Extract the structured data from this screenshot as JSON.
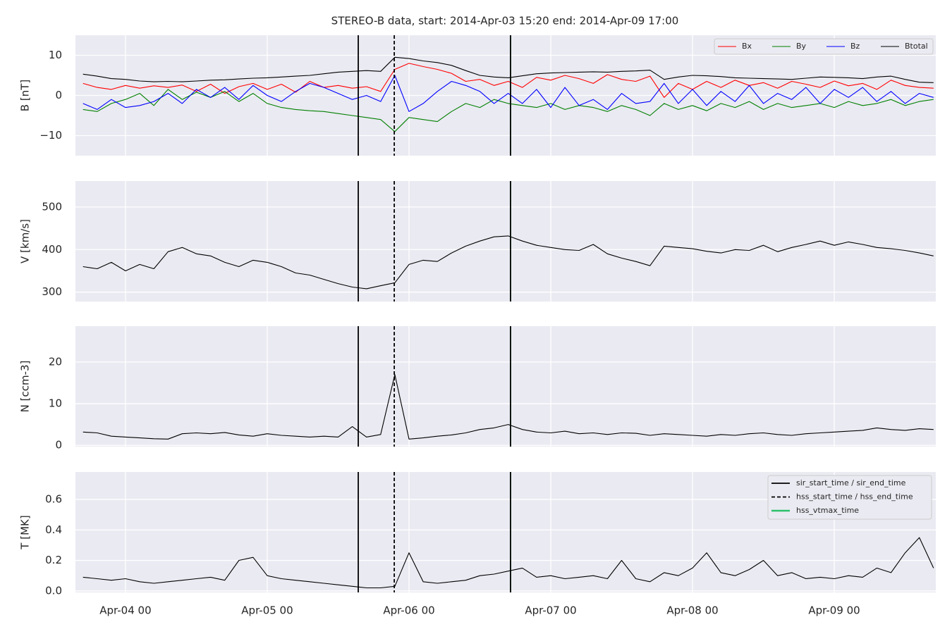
{
  "title": "STEREO-B data, start: 2014-Apr-03 15:20  end: 2014-Apr-09 17:00",
  "event_lines": [
    {
      "name": "hss_vtmax_time",
      "color": "#2cbf6a",
      "dash": "solid",
      "times": [
        6.716
      ]
    },
    {
      "name": "sir_start_time / sir_end_time",
      "color": "#000000",
      "dash": "solid",
      "times": [
        5.642,
        6.716
      ]
    },
    {
      "name": "hss_start_time / hss_end_time",
      "color": "#000000",
      "dash": "dashed",
      "times": [
        5.896
      ]
    }
  ],
  "event_legend_order": [
    1,
    2,
    0
  ],
  "chart_data": [
    {
      "type": "line",
      "ylabel": "B [nT]",
      "xlim": [
        3.647,
        9.716
      ],
      "ylim": [
        -15,
        15
      ],
      "yticks": [
        {
          "value": -10,
          "label": "−10"
        },
        0,
        10
      ],
      "grid": true,
      "legend": "upper right",
      "x": [
        3.7,
        3.8,
        3.9,
        4.0,
        4.1,
        4.2,
        4.3,
        4.4,
        4.5,
        4.6,
        4.7,
        4.8,
        4.9,
        5.0,
        5.1,
        5.2,
        5.3,
        5.4,
        5.5,
        5.6,
        5.7,
        5.8,
        5.9,
        6.0,
        6.1,
        6.2,
        6.3,
        6.4,
        6.5,
        6.6,
        6.7,
        6.8,
        6.9,
        7.0,
        7.1,
        7.2,
        7.3,
        7.4,
        7.5,
        7.6,
        7.7,
        7.8,
        7.9,
        8.0,
        8.1,
        8.2,
        8.3,
        8.4,
        8.5,
        8.6,
        8.7,
        8.8,
        8.9,
        9.0,
        9.1,
        9.2,
        9.3,
        9.4,
        9.5,
        9.6,
        9.7
      ],
      "series": [
        {
          "name": "Bx",
          "color": "#ff0000",
          "values": [
            3.0,
            2.0,
            1.5,
            2.5,
            1.8,
            2.4,
            2.0,
            2.6,
            1.0,
            2.8,
            0.5,
            2.2,
            3.0,
            1.5,
            2.8,
            0.8,
            3.5,
            2.0,
            2.5,
            1.8,
            2.2,
            1.0,
            6.5,
            8.0,
            7.2,
            6.5,
            5.5,
            3.5,
            4.0,
            2.5,
            3.5,
            2.0,
            4.5,
            3.8,
            5.0,
            4.2,
            3.0,
            5.2,
            4.0,
            3.5,
            4.8,
            -0.5,
            3.0,
            1.5,
            3.5,
            2.0,
            3.8,
            2.5,
            3.2,
            1.8,
            3.5,
            2.8,
            2.0,
            3.6,
            2.4,
            3.0,
            1.5,
            3.8,
            2.5,
            2.0,
            1.8
          ]
        },
        {
          "name": "By",
          "color": "#008000",
          "values": [
            -3.5,
            -4.0,
            -2.0,
            -1.0,
            0.5,
            -2.5,
            1.5,
            -1.0,
            0.8,
            -0.5,
            1.0,
            -1.5,
            0.5,
            -2.0,
            -3.0,
            -3.5,
            -3.8,
            -4.0,
            -4.5,
            -5.0,
            -5.5,
            -6.0,
            -9.0,
            -5.5,
            -6.0,
            -6.5,
            -4.0,
            -2.0,
            -3.0,
            -1.0,
            -2.0,
            -2.5,
            -3.0,
            -2.0,
            -3.5,
            -2.5,
            -3.0,
            -4.0,
            -2.5,
            -3.5,
            -5.0,
            -2.0,
            -3.5,
            -2.5,
            -3.8,
            -2.0,
            -3.0,
            -1.5,
            -3.5,
            -2.0,
            -3.0,
            -2.5,
            -2.0,
            -3.0,
            -1.5,
            -2.5,
            -2.0,
            -1.0,
            -2.5,
            -1.5,
            -1.0
          ]
        },
        {
          "name": "Bz",
          "color": "#0000ff",
          "values": [
            -2.0,
            -3.5,
            -1.0,
            -3.0,
            -2.5,
            -1.5,
            0.5,
            -2.0,
            1.5,
            -0.5,
            2.0,
            -1.0,
            2.5,
            0.0,
            -1.5,
            1.0,
            3.0,
            2.0,
            0.5,
            -1.0,
            0.0,
            -1.5,
            5.0,
            -4.0,
            -2.0,
            1.0,
            3.5,
            2.5,
            1.0,
            -2.0,
            0.5,
            -2.0,
            1.5,
            -3.0,
            2.0,
            -2.5,
            -1.0,
            -3.5,
            0.5,
            -2.0,
            -1.5,
            3.0,
            -2.0,
            1.5,
            -2.5,
            1.0,
            -1.5,
            2.5,
            -2.0,
            0.5,
            -1.0,
            2.0,
            -2.0,
            1.5,
            -0.5,
            2.0,
            -1.5,
            1.0,
            -2.0,
            0.5,
            -0.5
          ]
        },
        {
          "name": "Btotal",
          "color": "#000000",
          "values": [
            5.3,
            4.8,
            4.2,
            4.0,
            3.6,
            3.4,
            3.5,
            3.4,
            3.6,
            3.8,
            3.9,
            4.1,
            4.3,
            4.4,
            4.6,
            4.8,
            5.0,
            5.4,
            5.8,
            6.0,
            6.2,
            6.0,
            9.5,
            9.2,
            8.6,
            8.2,
            7.5,
            6.2,
            5.0,
            4.6,
            4.4,
            4.9,
            5.4,
            5.6,
            5.7,
            5.8,
            5.9,
            5.8,
            6.0,
            6.1,
            6.3,
            4.0,
            4.6,
            5.0,
            4.9,
            4.7,
            4.4,
            4.3,
            4.2,
            4.1,
            4.0,
            4.3,
            4.6,
            4.5,
            4.4,
            4.2,
            4.6,
            4.8,
            4.0,
            3.3,
            3.2
          ]
        }
      ]
    },
    {
      "type": "line",
      "ylabel": "V [km/s]",
      "xlim": [
        3.647,
        9.716
      ],
      "ylim": [
        278,
        561
      ],
      "yticks": [
        300,
        400,
        500
      ],
      "grid": true,
      "x": [
        3.7,
        3.8,
        3.9,
        4.0,
        4.1,
        4.2,
        4.3,
        4.4,
        4.5,
        4.6,
        4.7,
        4.8,
        4.9,
        5.0,
        5.1,
        5.2,
        5.3,
        5.4,
        5.5,
        5.6,
        5.7,
        5.8,
        5.9,
        6.0,
        6.1,
        6.2,
        6.3,
        6.4,
        6.5,
        6.6,
        6.7,
        6.8,
        6.9,
        7.0,
        7.1,
        7.2,
        7.3,
        7.4,
        7.5,
        7.6,
        7.7,
        7.8,
        7.9,
        8.0,
        8.1,
        8.2,
        8.3,
        8.4,
        8.5,
        8.6,
        8.7,
        8.8,
        8.9,
        9.0,
        9.1,
        9.2,
        9.3,
        9.4,
        9.5,
        9.6,
        9.7
      ],
      "series": [
        {
          "color": "#000000",
          "values": [
            360,
            355,
            370,
            350,
            365,
            355,
            395,
            405,
            390,
            385,
            370,
            360,
            375,
            370,
            360,
            345,
            340,
            330,
            320,
            312,
            308,
            315,
            322,
            365,
            375,
            372,
            392,
            408,
            420,
            430,
            432,
            420,
            410,
            405,
            400,
            398,
            412,
            390,
            380,
            372,
            362,
            408,
            405,
            402,
            396,
            392,
            400,
            398,
            410,
            395,
            405,
            412,
            420,
            410,
            418,
            412,
            405,
            402,
            398,
            392,
            385
          ]
        }
      ]
    },
    {
      "type": "line",
      "ylabel": "N [ccm-3]",
      "xlim": [
        3.647,
        9.716
      ],
      "ylim": [
        -0.3,
        28.6
      ],
      "yticks": [
        0,
        10,
        20
      ],
      "grid": true,
      "x": [
        3.7,
        3.8,
        3.9,
        4.0,
        4.1,
        4.2,
        4.3,
        4.4,
        4.5,
        4.6,
        4.7,
        4.8,
        4.9,
        5.0,
        5.1,
        5.2,
        5.3,
        5.4,
        5.5,
        5.6,
        5.7,
        5.8,
        5.9,
        6.0,
        6.1,
        6.2,
        6.3,
        6.4,
        6.5,
        6.6,
        6.7,
        6.8,
        6.9,
        7.0,
        7.1,
        7.2,
        7.3,
        7.4,
        7.5,
        7.6,
        7.7,
        7.8,
        7.9,
        8.0,
        8.1,
        8.2,
        8.3,
        8.4,
        8.5,
        8.6,
        8.7,
        8.8,
        8.9,
        9.0,
        9.1,
        9.2,
        9.3,
        9.4,
        9.5,
        9.6,
        9.7
      ],
      "series": [
        {
          "color": "#000000",
          "values": [
            3.2,
            3.0,
            2.2,
            2.0,
            1.8,
            1.6,
            1.5,
            2.8,
            3.0,
            2.8,
            3.1,
            2.5,
            2.2,
            2.8,
            2.4,
            2.2,
            2.0,
            2.2,
            2.0,
            4.5,
            2.0,
            2.6,
            17.0,
            1.5,
            1.8,
            2.2,
            2.5,
            3.0,
            3.8,
            4.2,
            5.0,
            3.8,
            3.2,
            3.0,
            3.4,
            2.8,
            3.0,
            2.6,
            3.0,
            2.9,
            2.4,
            2.8,
            2.6,
            2.4,
            2.2,
            2.6,
            2.4,
            2.8,
            3.0,
            2.6,
            2.4,
            2.8,
            3.0,
            3.2,
            3.4,
            3.6,
            4.2,
            3.8,
            3.6,
            4.0,
            3.8
          ]
        }
      ]
    },
    {
      "type": "line",
      "ylabel": "T [MK]",
      "xlim": [
        3.647,
        9.716
      ],
      "ylim": [
        -0.01,
        0.78
      ],
      "yticks": [
        {
          "value": 0,
          "label": "0.0"
        },
        0.2,
        0.4,
        0.6
      ],
      "grid": true,
      "legend": "upper right",
      "xticks": [
        {
          "value": 4,
          "label": "Apr-04 00"
        },
        {
          "value": 5,
          "label": "Apr-05 00"
        },
        {
          "value": 6,
          "label": "Apr-06 00"
        },
        {
          "value": 7,
          "label": "Apr-07 00"
        },
        {
          "value": 8,
          "label": "Apr-08 00"
        },
        {
          "value": 9,
          "label": "Apr-09 00"
        }
      ],
      "x": [
        3.7,
        3.8,
        3.9,
        4.0,
        4.1,
        4.2,
        4.3,
        4.4,
        4.5,
        4.6,
        4.7,
        4.8,
        4.9,
        5.0,
        5.1,
        5.2,
        5.3,
        5.4,
        5.5,
        5.6,
        5.7,
        5.8,
        5.9,
        6.0,
        6.1,
        6.2,
        6.3,
        6.4,
        6.5,
        6.6,
        6.7,
        6.8,
        6.9,
        7.0,
        7.1,
        7.2,
        7.3,
        7.4,
        7.5,
        7.6,
        7.7,
        7.8,
        7.9,
        8.0,
        8.1,
        8.2,
        8.3,
        8.4,
        8.5,
        8.6,
        8.7,
        8.8,
        8.9,
        9.0,
        9.1,
        9.2,
        9.3,
        9.4,
        9.5,
        9.6,
        9.7
      ],
      "series": [
        {
          "color": "#000000",
          "values": [
            0.09,
            0.08,
            0.07,
            0.08,
            0.06,
            0.05,
            0.06,
            0.07,
            0.08,
            0.09,
            0.07,
            0.2,
            0.22,
            0.1,
            0.08,
            0.07,
            0.06,
            0.05,
            0.04,
            0.03,
            0.02,
            0.02,
            0.03,
            0.25,
            0.06,
            0.05,
            0.06,
            0.07,
            0.1,
            0.11,
            0.13,
            0.15,
            0.09,
            0.1,
            0.08,
            0.09,
            0.1,
            0.08,
            0.2,
            0.08,
            0.06,
            0.12,
            0.1,
            0.15,
            0.25,
            0.12,
            0.1,
            0.14,
            0.2,
            0.1,
            0.12,
            0.08,
            0.09,
            0.08,
            0.1,
            0.09,
            0.15,
            0.12,
            0.25,
            0.35,
            0.15
          ]
        }
      ]
    }
  ]
}
